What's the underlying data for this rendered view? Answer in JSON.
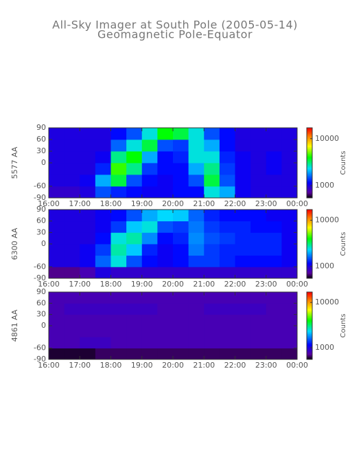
{
  "chart_data": [
    {
      "type": "heatmap",
      "title": "All-Sky Imager at South Pole (2005-05-14)",
      "subtitle": "Geomagnetic Pole-Equator",
      "ylabel": "5577 AA",
      "colormap": "rainbow",
      "xlim": [
        16,
        24
      ],
      "ylim": [
        -90,
        90
      ],
      "xticks": [
        {
          "value": 16,
          "label": "16:00"
        },
        {
          "value": 17,
          "label": "17:00"
        },
        {
          "value": 18,
          "label": "18:00"
        },
        {
          "value": 19,
          "label": "19:00"
        },
        {
          "value": 20,
          "label": "20:00"
        },
        {
          "value": 21,
          "label": "21:00"
        },
        {
          "value": 22,
          "label": "22:00"
        },
        {
          "value": 23,
          "label": "23:00"
        },
        {
          "value": 24,
          "label": "00:00"
        }
      ],
      "yticks": [
        90,
        60,
        30,
        0,
        -60,
        -90
      ],
      "xbins": [
        16,
        16.5,
        17,
        17.5,
        18,
        18.5,
        19,
        19.5,
        20,
        20.5,
        21,
        21.5,
        22,
        22.5,
        23,
        23.5,
        24
      ],
      "ybins": [
        -90,
        -60,
        -30,
        0,
        30,
        60,
        90
      ],
      "values": [
        [
          900,
          900,
          1000,
          1500,
          1300,
          1200,
          1100,
          1100,
          1200,
          1200,
          2500,
          2000,
          1100,
          1000,
          1000,
          1000
        ],
        [
          1000,
          1000,
          1100,
          2000,
          3500,
          1500,
          1200,
          1100,
          1200,
          1500,
          3500,
          1500,
          1100,
          1000,
          1000,
          1000
        ],
        [
          1000,
          1000,
          1000,
          1300,
          4500,
          3000,
          1400,
          1200,
          1200,
          2000,
          3000,
          1400,
          1100,
          1000,
          1100,
          1000
        ],
        [
          1000,
          1000,
          1000,
          1100,
          3000,
          4000,
          2000,
          1200,
          1300,
          2500,
          2500,
          1300,
          1100,
          1000,
          1100,
          1000
        ],
        [
          1000,
          1000,
          1000,
          1000,
          1600,
          2500,
          3500,
          1500,
          1400,
          2500,
          2000,
          1200,
          1000,
          1000,
          1000,
          1000
        ],
        [
          1000,
          1000,
          1000,
          1000,
          1200,
          1500,
          2500,
          4000,
          3500,
          2500,
          1500,
          1200,
          1000,
          1000,
          1000,
          1000
        ]
      ],
      "colorbar": {
        "label": "Counts",
        "scale": "log",
        "clim": [
          550,
          17000
        ],
        "ticks": [
          1000,
          10000
        ]
      }
    },
    {
      "type": "heatmap",
      "ylabel": "6300 AA",
      "colormap": "rainbow",
      "xlim": [
        16,
        24
      ],
      "ylim": [
        -90,
        90
      ],
      "xticks": [
        {
          "value": 16,
          "label": "16:00"
        },
        {
          "value": 17,
          "label": "17:00"
        },
        {
          "value": 18,
          "label": "18:00"
        },
        {
          "value": 19,
          "label": "19:00"
        },
        {
          "value": 20,
          "label": "20:00"
        },
        {
          "value": 21,
          "label": "21:00"
        },
        {
          "value": 22,
          "label": "22:00"
        },
        {
          "value": 23,
          "label": "23:00"
        },
        {
          "value": 24,
          "label": "00:00"
        }
      ],
      "yticks": [
        90,
        60,
        30,
        0,
        -60,
        -90
      ],
      "xbins": [
        16,
        16.5,
        17,
        17.5,
        18,
        18.5,
        19,
        19.5,
        20,
        20.5,
        21,
        21.5,
        22,
        22.5,
        23,
        23.5,
        24
      ],
      "ybins": [
        -90,
        -60,
        -30,
        0,
        30,
        60,
        90
      ],
      "values": [
        [
          700,
          700,
          800,
          1000,
          900,
          900,
          900,
          900,
          900,
          900,
          900,
          900,
          900,
          900,
          900,
          900
        ],
        [
          1000,
          1000,
          1100,
          1600,
          2500,
          1500,
          1200,
          1100,
          1200,
          1400,
          1400,
          1300,
          1200,
          1200,
          1200,
          1100
        ],
        [
          1000,
          1000,
          1100,
          1400,
          2800,
          2200,
          1300,
          1100,
          1200,
          1700,
          1400,
          1300,
          1300,
          1300,
          1300,
          1100
        ],
        [
          1000,
          1000,
          1000,
          1200,
          2500,
          2800,
          1800,
          1200,
          1300,
          1800,
          1500,
          1400,
          1300,
          1300,
          1300,
          1100
        ],
        [
          1000,
          1000,
          1000,
          1100,
          1400,
          2200,
          2500,
          1500,
          1400,
          1700,
          1400,
          1300,
          1300,
          1200,
          1200,
          1100
        ],
        [
          1000,
          1000,
          1000,
          1100,
          1200,
          1500,
          2000,
          2300,
          2200,
          1600,
          1300,
          1200,
          1200,
          1200,
          1100,
          1100
        ]
      ],
      "colorbar": {
        "label": "Counts",
        "scale": "log",
        "clim": [
          550,
          17000
        ],
        "ticks": [
          1000,
          10000
        ]
      }
    },
    {
      "type": "heatmap",
      "ylabel": "4861 AA",
      "colormap": "rainbow",
      "xlim": [
        16,
        24
      ],
      "ylim": [
        -90,
        90
      ],
      "xticks": [
        {
          "value": 16,
          "label": "16:00"
        },
        {
          "value": 17,
          "label": "17:00"
        },
        {
          "value": 18,
          "label": "18:00"
        },
        {
          "value": 19,
          "label": "19:00"
        },
        {
          "value": 20,
          "label": "20:00"
        },
        {
          "value": 21,
          "label": "21:00"
        },
        {
          "value": 22,
          "label": "22:00"
        },
        {
          "value": 23,
          "label": "23:00"
        },
        {
          "value": 24,
          "label": "00:00"
        }
      ],
      "yticks": [
        90,
        60,
        30,
        0,
        -60,
        -90
      ],
      "xbins": [
        16,
        16.5,
        17,
        17.5,
        18,
        18.5,
        19,
        19.5,
        20,
        20.5,
        21,
        21.5,
        22,
        22.5,
        23,
        23.5,
        24
      ],
      "ybins": [
        -90,
        -60,
        -30,
        0,
        30,
        60,
        90
      ],
      "values": [
        [
          600,
          600,
          600,
          650,
          650,
          650,
          650,
          650,
          650,
          650,
          650,
          650,
          650,
          650,
          650,
          650
        ],
        [
          800,
          800,
          850,
          850,
          800,
          800,
          800,
          800,
          800,
          800,
          800,
          800,
          800,
          800,
          800,
          800
        ],
        [
          800,
          800,
          800,
          800,
          800,
          800,
          800,
          800,
          800,
          800,
          800,
          800,
          800,
          800,
          800,
          800
        ],
        [
          800,
          800,
          800,
          800,
          800,
          800,
          800,
          800,
          800,
          800,
          800,
          800,
          800,
          800,
          800,
          800
        ],
        [
          800,
          850,
          850,
          850,
          850,
          850,
          850,
          800,
          800,
          800,
          850,
          850,
          850,
          850,
          800,
          800
        ],
        [
          800,
          800,
          800,
          800,
          800,
          800,
          800,
          800,
          800,
          800,
          800,
          800,
          800,
          800,
          800,
          800
        ]
      ],
      "colorbar": {
        "label": "Counts",
        "scale": "log",
        "clim": [
          550,
          17000
        ],
        "ticks": [
          1000,
          10000
        ]
      }
    }
  ]
}
